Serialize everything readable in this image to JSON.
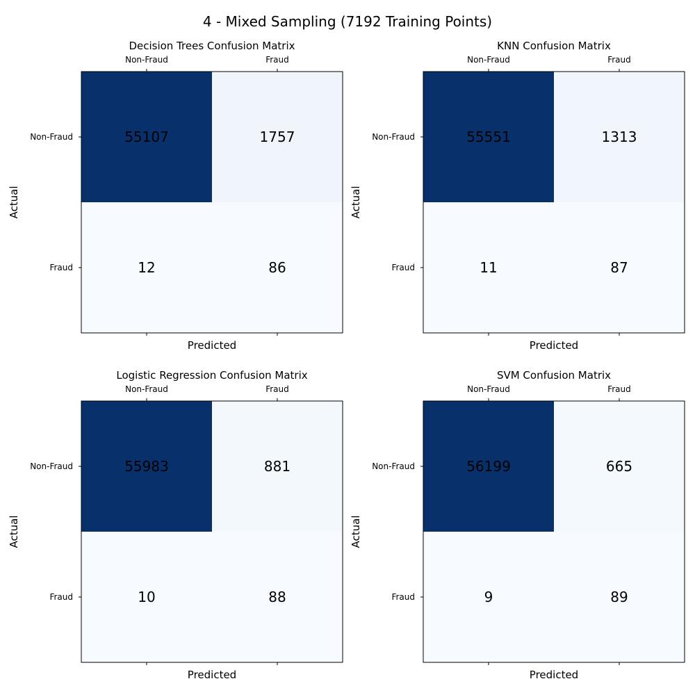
{
  "figure": {
    "title": "4 - Mixed Sampling (7192 Training Points)"
  },
  "colormap": {
    "name": "Blues",
    "low": "#f7fbff",
    "high": "#08306b"
  },
  "chart_data": [
    {
      "type": "heatmap",
      "title": "Decision Trees Confusion Matrix",
      "xlabel": "Predicted",
      "ylabel": "Actual",
      "x_categories": [
        "Non-Fraud",
        "Fraud"
      ],
      "y_categories": [
        "Non-Fraud",
        "Fraud"
      ],
      "values": [
        [
          55107,
          1757
        ],
        [
          12,
          86
        ]
      ],
      "grid": false
    },
    {
      "type": "heatmap",
      "title": "KNN Confusion Matrix",
      "xlabel": "Predicted",
      "ylabel": "Actual",
      "x_categories": [
        "Non-Fraud",
        "Fraud"
      ],
      "y_categories": [
        "Non-Fraud",
        "Fraud"
      ],
      "values": [
        [
          55551,
          1313
        ],
        [
          11,
          87
        ]
      ],
      "grid": false
    },
    {
      "type": "heatmap",
      "title": "Logistic Regression Confusion Matrix",
      "xlabel": "Predicted",
      "ylabel": "Actual",
      "x_categories": [
        "Non-Fraud",
        "Fraud"
      ],
      "y_categories": [
        "Non-Fraud",
        "Fraud"
      ],
      "values": [
        [
          55983,
          881
        ],
        [
          10,
          88
        ]
      ],
      "grid": false
    },
    {
      "type": "heatmap",
      "title": "SVM Confusion Matrix",
      "xlabel": "Predicted",
      "ylabel": "Actual",
      "x_categories": [
        "Non-Fraud",
        "Fraud"
      ],
      "y_categories": [
        "Non-Fraud",
        "Fraud"
      ],
      "values": [
        [
          56199,
          665
        ],
        [
          9,
          89
        ]
      ],
      "grid": false
    }
  ]
}
